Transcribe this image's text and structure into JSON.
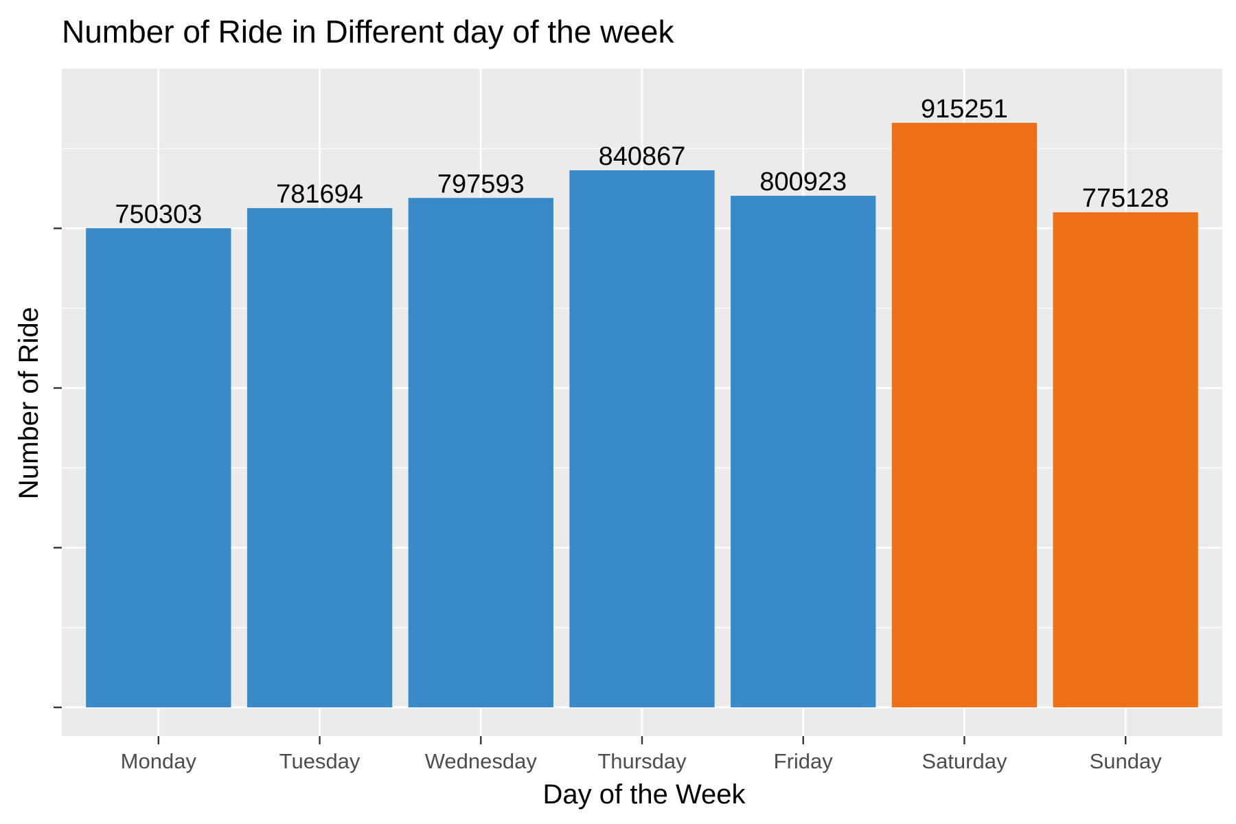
{
  "chart_data": {
    "type": "bar",
    "title": "Number of Ride in Different day of the week",
    "xlabel": "Day of the Week",
    "ylabel": "Number of Ride",
    "categories": [
      "Monday",
      "Tuesday",
      "Wednesday",
      "Thursday",
      "Friday",
      "Saturday",
      "Sunday"
    ],
    "values": [
      750303,
      781694,
      797593,
      840867,
      800923,
      915251,
      775128
    ],
    "data_labels": [
      "750303",
      "781694",
      "797593",
      "840867",
      "800923",
      "915251",
      "775128"
    ],
    "bar_colors": [
      "#3789C8",
      "#3789C8",
      "#3789C8",
      "#3789C8",
      "#3789C8",
      "#EE7016",
      "#EE7016"
    ],
    "ylim": [
      -45000,
      1000000
    ],
    "y_major_ticks": [
      0,
      250000,
      500000,
      750000
    ],
    "y_tick_labels_shown": false,
    "grid": true,
    "panel_background": "#EBEBEB",
    "grid_color": "#FFFFFF",
    "legend": "none"
  }
}
